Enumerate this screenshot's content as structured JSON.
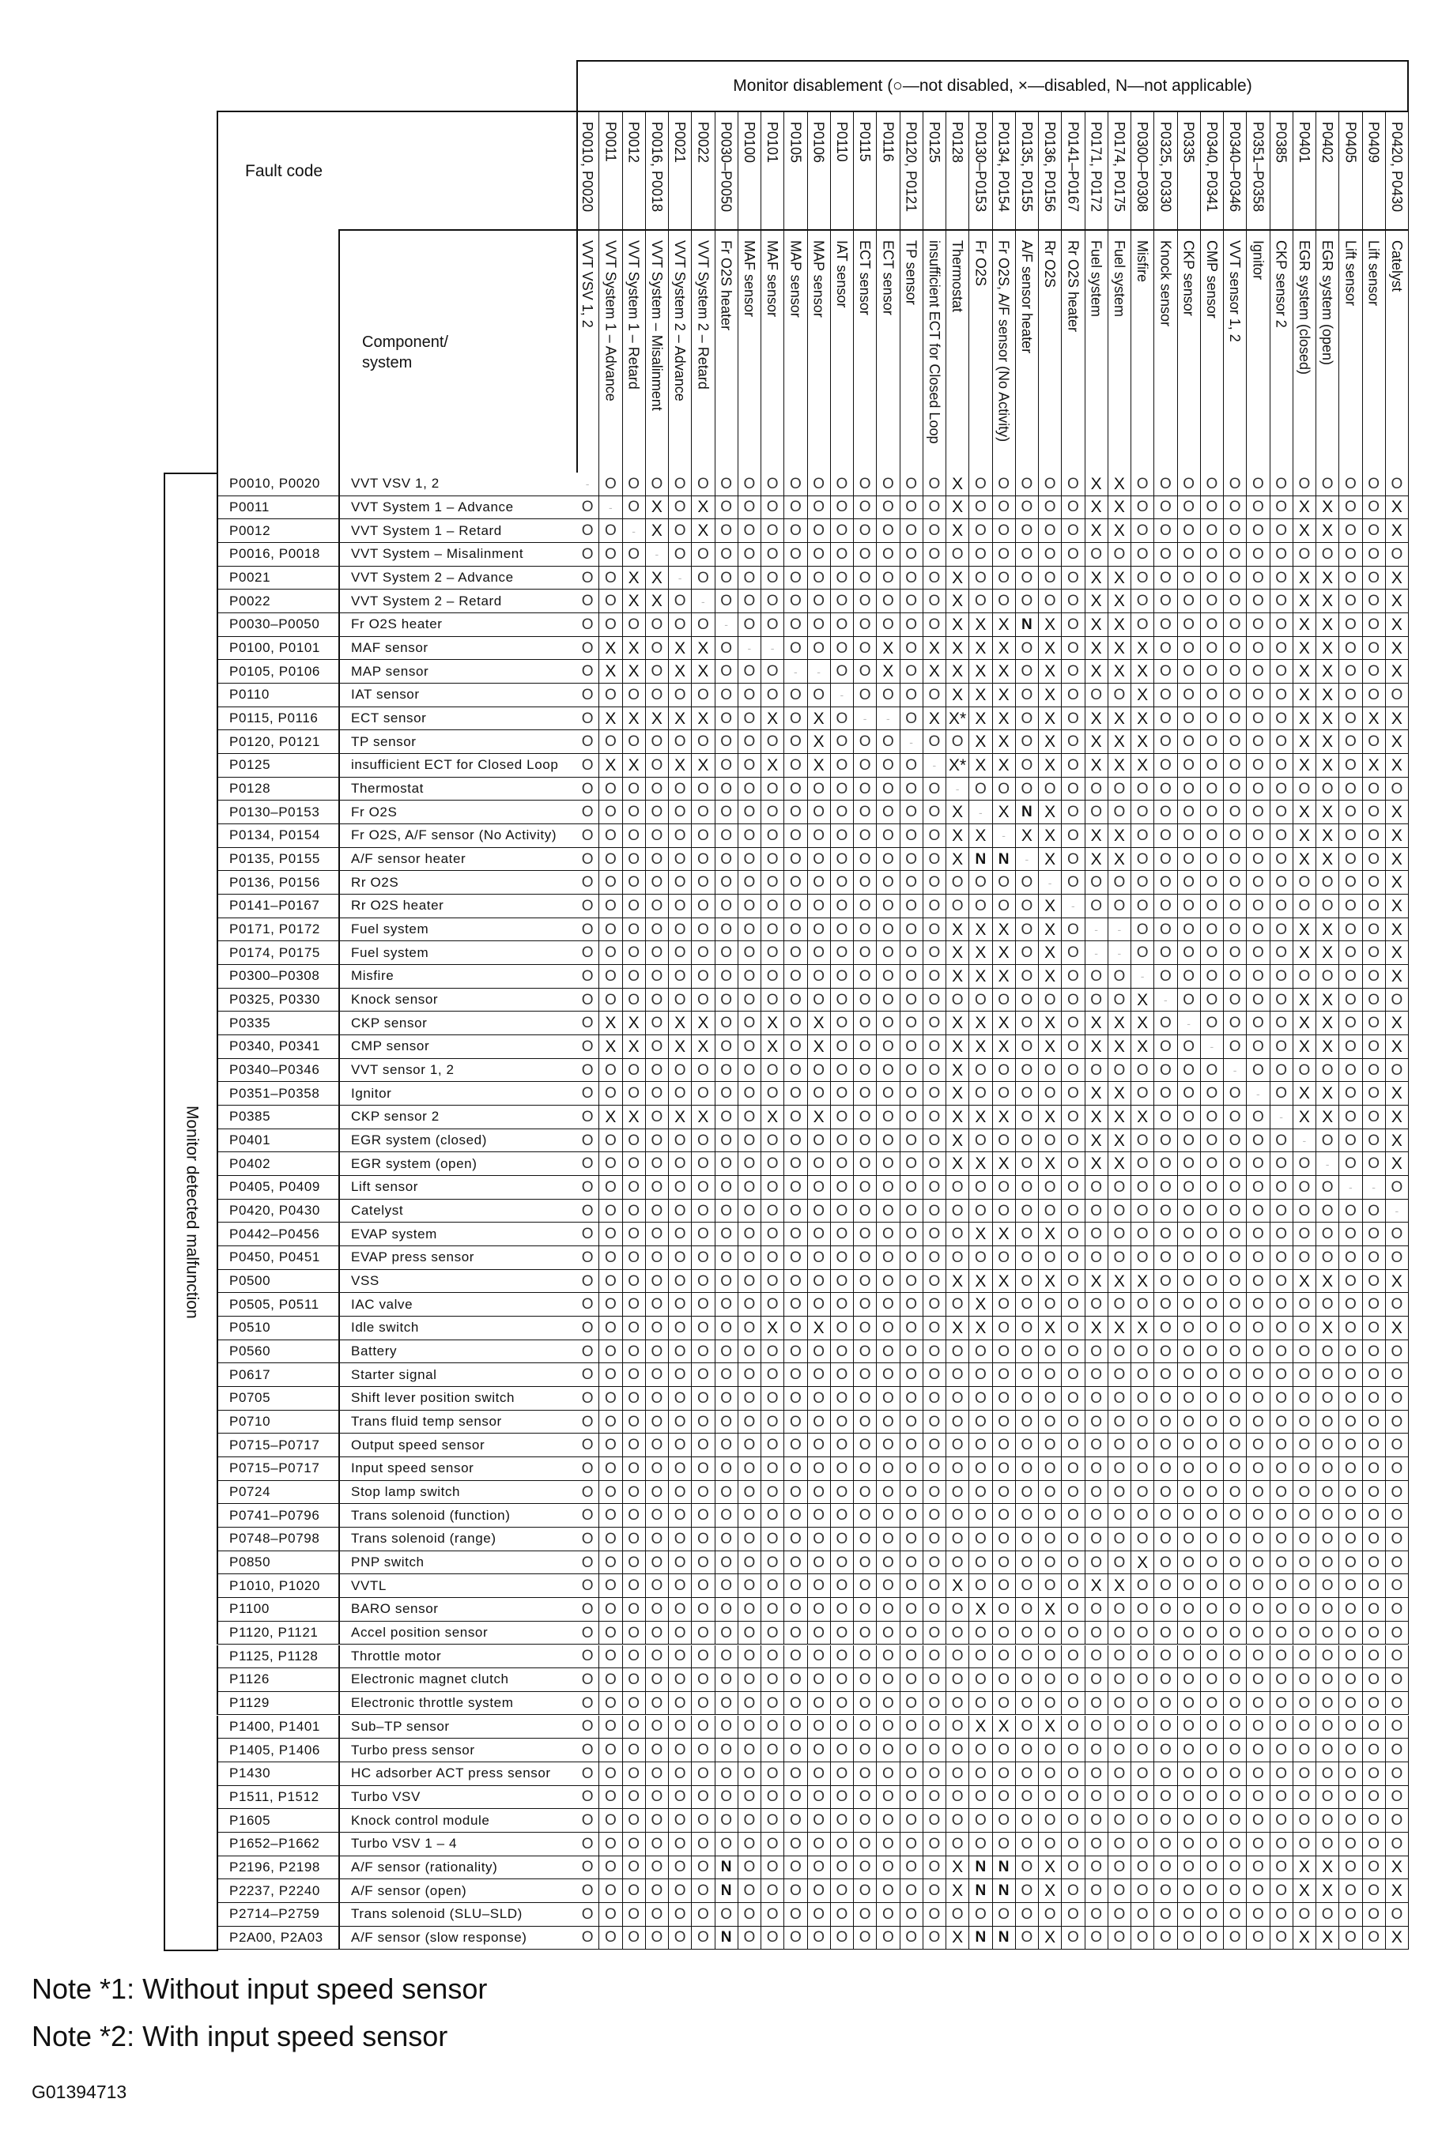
{
  "header": {
    "title": "Monitor disablement (○—not disabled, ×—disabled, N—not applicable)",
    "fault_code_label": "Fault code",
    "component_label": "Component/ system",
    "side_label": "Monitor detected malfunction"
  },
  "legend": {
    "O": "not disabled",
    "X": "disabled",
    "N": "not applicable"
  },
  "columns": [
    {
      "code": "P0010, P0020",
      "component": "VVT VSV 1, 2"
    },
    {
      "code": "P0011",
      "component": "VVT System 1 – Advance"
    },
    {
      "code": "P0012",
      "component": "VVT System 1 – Retard"
    },
    {
      "code": "P0016, P0018",
      "component": "VVT System – Misalinment"
    },
    {
      "code": "P0021",
      "component": "VVT System 2 – Advance"
    },
    {
      "code": "P0022",
      "component": "VVT System 2 – Retard"
    },
    {
      "code": "P0030–P0050",
      "component": "Fr O2S heater"
    },
    {
      "code": "P0100",
      "component": "MAF sensor"
    },
    {
      "code": "P0101",
      "component": "MAF sensor"
    },
    {
      "code": "P0105",
      "component": "MAP sensor"
    },
    {
      "code": "P0106",
      "component": "MAP sensor"
    },
    {
      "code": "P0110",
      "component": "IAT sensor"
    },
    {
      "code": "P0115",
      "component": "ECT sensor"
    },
    {
      "code": "P0116",
      "component": "ECT sensor"
    },
    {
      "code": "P0120, P0121",
      "component": "TP sensor"
    },
    {
      "code": "P0125",
      "component": "insufficient ECT for Closed Loop"
    },
    {
      "code": "P0128",
      "component": "Thermostat"
    },
    {
      "code": "P0130–P0153",
      "component": "Fr O2S"
    },
    {
      "code": "P0134, P0154",
      "component": "Fr O2S, A/F sensor (No Activity)"
    },
    {
      "code": "P0135, P0155",
      "component": "A/F sensor heater"
    },
    {
      "code": "P0136, P0156",
      "component": "Rr O2S"
    },
    {
      "code": "P0141–P0167",
      "component": "Rr O2S heater"
    },
    {
      "code": "P0171, P0172",
      "component": "Fuel system"
    },
    {
      "code": "P0174, P0175",
      "component": "Fuel system"
    },
    {
      "code": "P0300–P0308",
      "component": "Misfire"
    },
    {
      "code": "P0325, P0330",
      "component": "Knock sensor"
    },
    {
      "code": "P0335",
      "component": "CKP sensor"
    },
    {
      "code": "P0340, P0341",
      "component": "CMP sensor"
    },
    {
      "code": "P0340–P0346",
      "component": "VVT sensor 1, 2"
    },
    {
      "code": "P0351–P0358",
      "component": "Ignitor"
    },
    {
      "code": "P0385",
      "component": "CKP sensor 2"
    },
    {
      "code": "P0401",
      "component": "EGR system (closed)"
    },
    {
      "code": "P0402",
      "component": "EGR system (open)"
    },
    {
      "code": "P0405",
      "component": "Lift sensor"
    },
    {
      "code": "P0409",
      "component": "Lift sensor"
    },
    {
      "code": "P0420, P0430",
      "component": "Catelyst"
    }
  ],
  "rows": [
    {
      "code": "P0010, P0020",
      "component": "VVT VSV 1, 2",
      "cells": "- O O O O O O O O O O O O O O O X O O O O O X X O O O O O O O O O O O O"
    },
    {
      "code": "P0011",
      "component": "VVT System 1 – Advance",
      "cells": "O - O X O X O O O O O O O O O O X O O O O O X X O O O O O O O X X O O X"
    },
    {
      "code": "P0012",
      "component": "VVT System 1 – Retard",
      "cells": "O O - X O X O O O O O O O O O O X O O O O O X X O O O O O O O X X O O X"
    },
    {
      "code": "P0016, P0018",
      "component": "VVT System – Misalinment",
      "cells": "O O O - O O O O O O O O O O O O O O O O O O O O O O O O O O O O O O O O"
    },
    {
      "code": "P0021",
      "component": "VVT System 2 – Advance",
      "cells": "O O X X - O O O O O O O O O O O X O O O O O X X O O O O O O O X X O O X"
    },
    {
      "code": "P0022",
      "component": "VVT System 2 – Retard",
      "cells": "O O X X O - O O O O O O O O O O X O O O O O X X O O O O O O O X X O O X"
    },
    {
      "code": "P0030–P0050",
      "component": "Fr O2S heater",
      "cells": "O O O O O O - O O O O O O O O O X X X N X O X X O O O O O O O X X O O X"
    },
    {
      "code": "P0100, P0101",
      "component": "MAF sensor",
      "cells": "O X X O X X O - - O O O O X O X X X X O X O X X X O O O O O O X X O O X"
    },
    {
      "code": "P0105, P0106",
      "component": "MAP sensor",
      "cells": "O X X O X X O O O - - O O X O X X X X O X O X X X O O O O O O X X O O X"
    },
    {
      "code": "P0110",
      "component": "IAT sensor",
      "cells": "O O O O O O O O O O O - O O O O X X X O X O O O X O O O O O O X X O O O"
    },
    {
      "code": "P0115, P0116",
      "component": "ECT sensor",
      "cells": "O X X X X X O O X O X O - - O X X* X X O X O X X X O O O O O O X X O X X"
    },
    {
      "code": "P0120, P0121",
      "component": "TP sensor",
      "cells": "O O O O O O O O O O X O O O - O O X X O X O X X X O O O O O O X X O O X"
    },
    {
      "code": "P0125",
      "component": "insufficient ECT for Closed Loop",
      "cells": "O X X O X X O O X O X O O O O - X* X X O X O X X X O O O O O O X X O X X"
    },
    {
      "code": "P0128",
      "component": "Thermostat",
      "cells": "O O O O O O O O O O O O O O O O - O O O O O O O O O O O O O O O O O O O"
    },
    {
      "code": "P0130–P0153",
      "component": "Fr O2S",
      "cells": "O O O O O O O O O O O O O O O O X - X N X O O O O O O O O O O X X O O X"
    },
    {
      "code": "P0134, P0154",
      "component": "Fr O2S, A/F sensor (No Activity)",
      "cells": "O O O O O O O O O O O O O O O O X X - X X O X X O O O O O O O X X O O X"
    },
    {
      "code": "P0135, P0155",
      "component": "A/F sensor heater",
      "cells": "O O O O O O O O O O O O O O O O X N N - X O X X O O O O O O O X X O O X"
    },
    {
      "code": "P0136, P0156",
      "component": "Rr O2S",
      "cells": "O O O O O O O O O O O O O O O O O O O O - O O O O O O O O O O O O O O X"
    },
    {
      "code": "P0141–P0167",
      "component": "Rr O2S heater",
      "cells": "O O O O O O O O O O O O O O O O O O O O X - O O O O O O O O O O O O O X"
    },
    {
      "code": "P0171, P0172",
      "component": "Fuel system",
      "cells": "O O O O O O O O O O O O O O O O X X X O X O - - O O O O O O O X X O O X"
    },
    {
      "code": "P0174, P0175",
      "component": "Fuel system",
      "cells": "O O O O O O O O O O O O O O O O X X X O X O - - O O O O O O O X X O O X"
    },
    {
      "code": "P0300–P0308",
      "component": "Misfire",
      "cells": "O O O O O O O O O O O O O O O O X X X O X O O O - O O O O O O O O O O X"
    },
    {
      "code": "P0325, P0330",
      "component": "Knock sensor",
      "cells": "O O O O O O O O O O O O O O O O O O O O O O O O X - O O O O O X X O O O"
    },
    {
      "code": "P0335",
      "component": "CKP sensor",
      "cells": "O X X O X X O O X O X O O O O O X X X O X O X X X O - O O O O X X O O X"
    },
    {
      "code": "P0340, P0341",
      "component": "CMP sensor",
      "cells": "O X X O X X O O X O X O O O O O X X X O X O X X X O O - O O O X X O O X"
    },
    {
      "code": "P0340–P0346",
      "component": "VVT sensor 1, 2",
      "cells": "O O O O O O O O O O O O O O O O X O O O O O O O O O O O - O O O O O O O"
    },
    {
      "code": "P0351–P0358",
      "component": "Ignitor",
      "cells": "O O O O O O O O O O O O O O O O X O O O O O X X O O O O O - O X X O O X"
    },
    {
      "code": "P0385",
      "component": "CKP sensor 2",
      "cells": "O X X O X X O O X O X O O O O O X X X O X O X X X O O O O O - X X O O X"
    },
    {
      "code": "P0401",
      "component": "EGR system (closed)",
      "cells": "O O O O O O O O O O O O O O O O X O O O O O X X O O O O O O O - O O O X"
    },
    {
      "code": "P0402",
      "component": "EGR system (open)",
      "cells": "O O O O O O O O O O O O O O O O X X X O X O X X O O O O O O O O - O O X"
    },
    {
      "code": "P0405, P0409",
      "component": "Lift sensor",
      "cells": "O O O O O O O O O O O O O O O O O O O O O O O O O O O O O O O O O - - O"
    },
    {
      "code": "P0420, P0430",
      "component": "Catelyst",
      "cells": "O O O O O O O O O O O O O O O O O O O O O O O O O O O O O O O O O O O -"
    },
    {
      "code": "P0442–P0456",
      "component": "EVAP system",
      "cells": "O O O O O O O O O O O O O O O O O X X O X O O O O O O O O O O O O O O O"
    },
    {
      "code": "P0450, P0451",
      "component": "EVAP press sensor",
      "cells": "O O O O O O O O O O O O O O O O O O O O O O O O O O O O O O O O O O O O"
    },
    {
      "code": "P0500",
      "component": "VSS",
      "cells": "O O O O O O O O O O O O O O O O X X X O X O X X X O O O O O O X X O O X"
    },
    {
      "code": "P0505, P0511",
      "component": "IAC valve",
      "cells": "O O O O O O O O O O O O O O O O O X O O O O O O O O O O O O O O O O O O"
    },
    {
      "code": "P0510",
      "component": "Idle switch",
      "cells": "O O O O O O O O X O X O O O O O X X O O X O X X X O O O O O O O X O O X"
    },
    {
      "code": "P0560",
      "component": "Battery",
      "cells": "O O O O O O O O O O O O O O O O O O O O O O O O O O O O O O O O O O O O"
    },
    {
      "code": "P0617",
      "component": "Starter signal",
      "cells": "O O O O O O O O O O O O O O O O O O O O O O O O O O O O O O O O O O O O"
    },
    {
      "code": "P0705",
      "component": "Shift lever position switch",
      "cells": "O O O O O O O O O O O O O O O O O O O O O O O O O O O O O O O O O O O O"
    },
    {
      "code": "P0710",
      "component": "Trans fluid temp sensor",
      "cells": "O O O O O O O O O O O O O O O O O O O O O O O O O O O O O O O O O O O O"
    },
    {
      "code": "P0715–P0717",
      "component": "Output speed sensor",
      "cells": "O O O O O O O O O O O O O O O O O O O O O O O O O O O O O O O O O O O O"
    },
    {
      "code": "P0715–P0717",
      "component": "Input speed sensor",
      "cells": "O O O O O O O O O O O O O O O O O O O O O O O O O O O O O O O O O O O O"
    },
    {
      "code": "P0724",
      "component": "Stop lamp switch",
      "cells": "O O O O O O O O O O O O O O O O O O O O O O O O O O O O O O O O O O O O"
    },
    {
      "code": "P0741–P0796",
      "component": "Trans solenoid (function)",
      "cells": "O O O O O O O O O O O O O O O O O O O O O O O O O O O O O O O O O O O O"
    },
    {
      "code": "P0748–P0798",
      "component": "Trans solenoid (range)",
      "cells": "O O O O O O O O O O O O O O O O O O O O O O O O O O O O O O O O O O O O"
    },
    {
      "code": "P0850",
      "component": "PNP switch",
      "cells": "O O O O O O O O O O O O O O O O O O O O O O O O X O O O O O O O O O O O"
    },
    {
      "code": "P1010, P1020",
      "component": "VVTL",
      "cells": "O O O O O O O O O O O O O O O O X O O O O O X X O O O O O O O O O O O O"
    },
    {
      "code": "P1100",
      "component": "BARO sensor",
      "cells": "O O O O O O O O O O O O O O O O O X O O X O O O O O O O O O O O O O O O"
    },
    {
      "code": "P1120, P1121",
      "component": "Accel position sensor",
      "cells": "O O O O O O O O O O O O O O O O O O O O O O O O O O O O O O O O O O O O"
    },
    {
      "code": "P1125, P1128",
      "component": "Throttle motor",
      "cells": "O O O O O O O O O O O O O O O O O O O O O O O O O O O O O O O O O O O O"
    },
    {
      "code": "P1126",
      "component": "Electronic magnet clutch",
      "cells": "O O O O O O O O O O O O O O O O O O O O O O O O O O O O O O O O O O O O"
    },
    {
      "code": "P1129",
      "component": "Electronic throttle system",
      "cells": "O O O O O O O O O O O O O O O O O O O O O O O O O O O O O O O O O O O O"
    },
    {
      "code": "P1400, P1401",
      "component": "Sub–TP sensor",
      "cells": "O O O O O O O O O O O O O O O O O X X O X O O O O O O O O O O O O O O O"
    },
    {
      "code": "P1405, P1406",
      "component": "Turbo press sensor",
      "cells": "O O O O O O O O O O O O O O O O O O O O O O O O O O O O O O O O O O O O"
    },
    {
      "code": "P1430",
      "component": "HC adsorber ACT press sensor",
      "cells": "O O O O O O O O O O O O O O O O O O O O O O O O O O O O O O O O O O O O"
    },
    {
      "code": "P1511, P1512",
      "component": "Turbo VSV",
      "cells": "O O O O O O O O O O O O O O O O O O O O O O O O O O O O O O O O O O O O"
    },
    {
      "code": "P1605",
      "component": "Knock control module",
      "cells": "O O O O O O O O O O O O O O O O O O O O O O O O O O O O O O O O O O O O"
    },
    {
      "code": "P1652–P1662",
      "component": "Turbo VSV 1 – 4",
      "cells": "O O O O O O O O O O O O O O O O O O O O O O O O O O O O O O O O O O O O"
    },
    {
      "code": "P2196, P2198",
      "component": "A/F sensor (rationality)",
      "cells": "O O O O O O N O O O O O O O O O X N N O X O O O O O O O O O O X X O O X"
    },
    {
      "code": "P2237, P2240",
      "component": "A/F sensor (open)",
      "cells": "O O O O O O N O O O O O O O O O X N N O X O O O O O O O O O O X X O O X"
    },
    {
      "code": "P2714–P2759",
      "component": "Trans solenoid (SLU–SLD)",
      "cells": "O O O O O O O O O O O O O O O O O O O O O O O O O O O O O O O O O O O O"
    },
    {
      "code": "P2A00, P2A03",
      "component": "A/F sensor (slow response)",
      "cells": "O O O O O O N O O O O O O O O O X N N O X O O O O O O O O O O X X O O X"
    }
  ],
  "symbols": {
    "O": "",
    "X": "×",
    "X*": "×*",
    "N": "N",
    "-": ""
  },
  "notes": [
    "Note *1: Without input speed sensor",
    "Note *2: With input speed sensor"
  ],
  "figure_id": "G01394713"
}
